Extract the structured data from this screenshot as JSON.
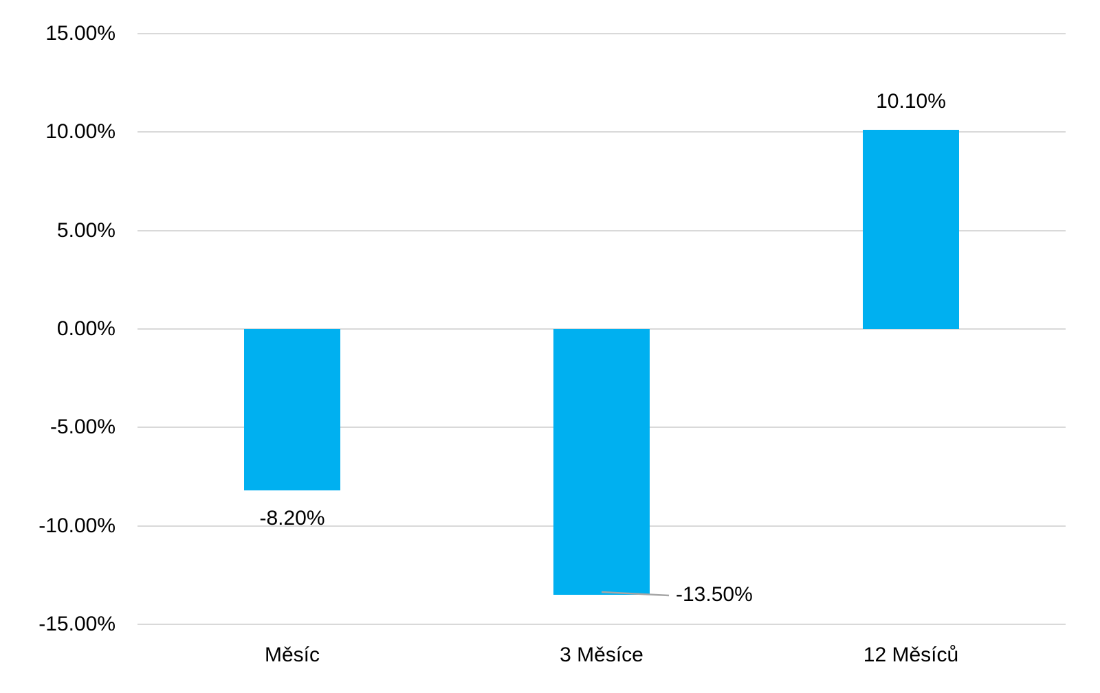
{
  "chart_data": {
    "type": "bar",
    "title": "",
    "xlabel": "",
    "ylabel": "",
    "categories": [
      "Měsíc",
      "3 Měsíce",
      "12 Měsíců"
    ],
    "values": [
      -8.2,
      -13.5,
      10.1
    ],
    "data_labels": [
      "-8.20%",
      "-13.50%",
      "10.10%"
    ],
    "label_placements": [
      "below-bar",
      "right-of-bar-with-leader",
      "above-bar"
    ],
    "ylim": [
      -15,
      15
    ],
    "y_ticks": [
      {
        "value": 15,
        "label": "15.00%"
      },
      {
        "value": 10,
        "label": "10.00%"
      },
      {
        "value": 5,
        "label": "5.00%"
      },
      {
        "value": 0,
        "label": "0.00%"
      },
      {
        "value": -5,
        "label": "-5.00%"
      },
      {
        "value": -10,
        "label": "-10.00%"
      },
      {
        "value": -15,
        "label": "-15.00%"
      }
    ],
    "grid": "horizontal",
    "legend": "none",
    "colors": {
      "bar": "#00B0F0",
      "gridline": "#D9D9D9",
      "leader_line": "#A6A6A6",
      "text": "#000000",
      "background": "#FFFFFF"
    }
  }
}
